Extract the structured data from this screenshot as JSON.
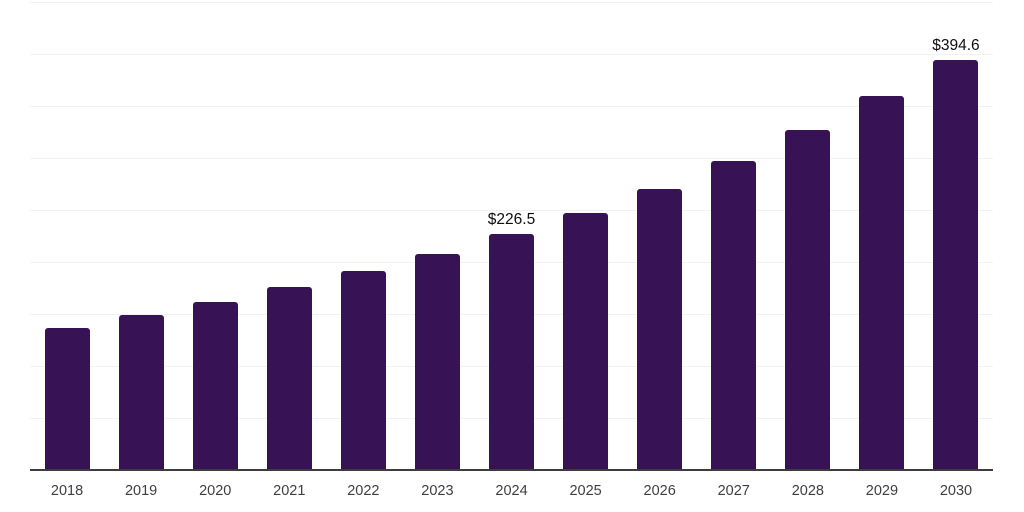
{
  "chart_data": {
    "type": "bar",
    "title": "",
    "xlabel": "",
    "ylabel": "",
    "categories": [
      "2018",
      "2019",
      "2020",
      "2021",
      "2022",
      "2023",
      "2024",
      "2025",
      "2026",
      "2027",
      "2028",
      "2029",
      "2030"
    ],
    "values": [
      136.8,
      148.9,
      161.6,
      176.0,
      191.0,
      207.3,
      226.5,
      247.0,
      270.4,
      297.6,
      326.5,
      360.0,
      394.6
    ],
    "data_labels": {
      "2024": "$226.5",
      "2030": "$394.6"
    },
    "ylim": [
      0,
      450
    ],
    "grid_step": 50,
    "grid": true,
    "legend_position": "none",
    "y_axis_tick_labels_visible": false
  },
  "colors": {
    "bar": "#371254",
    "grid": "#f2f2f5",
    "axis": "#3d3d3d",
    "tick_text": "#3f3f3f",
    "data_label_text": "#0f0f0f",
    "background": "#ffffff"
  }
}
